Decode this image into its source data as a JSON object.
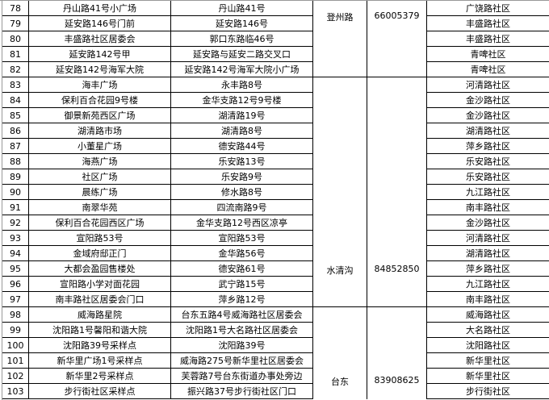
{
  "rows": [
    {
      "no": "78",
      "site": "丹山路41号小广场",
      "address": "丹山路41号",
      "community": "广饶路社区"
    },
    {
      "no": "79",
      "site": "延安路146号门前",
      "address": "延安路146号",
      "community": "丰盛路社区"
    },
    {
      "no": "80",
      "site": "丰盛路社区居委会",
      "address": "郭口东路临46号",
      "community": "丰盛路社区"
    },
    {
      "no": "81",
      "site": "延安路142号甲",
      "address": "延安路与延安二路交叉口",
      "community": "青啤社区"
    },
    {
      "no": "82",
      "site": "延安路142号海军大院",
      "address": "延安路142号海军大院小广场",
      "community": "青啤社区"
    },
    {
      "no": "83",
      "site": "海丰广场",
      "address": "永丰路8号",
      "community": "河清路社区"
    },
    {
      "no": "84",
      "site": "保利百合花园9号楼",
      "address": "金华支路12号9号楼",
      "community": "金沙路社区"
    },
    {
      "no": "85",
      "site": "御景新苑西区广场",
      "address": "湖清路19号",
      "community": "金沙路社区"
    },
    {
      "no": "86",
      "site": "湖清路市场",
      "address": "湖清路8号",
      "community": "湖清路社区"
    },
    {
      "no": "87",
      "site": "小董星广场",
      "address": "德安路44号",
      "community": "萍乡路社区"
    },
    {
      "no": "88",
      "site": "海燕广场",
      "address": "乐安路13号",
      "community": "乐安路社区"
    },
    {
      "no": "89",
      "site": "社区广场",
      "address": "乐安路9号",
      "community": "乐安路社区"
    },
    {
      "no": "90",
      "site": "晨练广场",
      "address": "修水路8号",
      "community": "九江路社区"
    },
    {
      "no": "91",
      "site": "南翠华苑",
      "address": "四流南路9号",
      "community": "南丰路社区"
    },
    {
      "no": "92",
      "site": "保利百合花园西区广场",
      "address": "金华支路12号西区凉亭",
      "community": "金沙路社区"
    },
    {
      "no": "93",
      "site": "宣阳路53号",
      "address": "宣阳路53号",
      "community": "河清路社区"
    },
    {
      "no": "94",
      "site": "金域府邸正门",
      "address": "金华路56号",
      "community": "湖清路社区"
    },
    {
      "no": "95",
      "site": "大都会盈园售楼处",
      "address": "德安路61号",
      "community": "萍乡路社区"
    },
    {
      "no": "96",
      "site": "宣阳路小学对面花园",
      "address": "武宁路15号",
      "community": "九江路社区"
    },
    {
      "no": "97",
      "site": "南丰路社区居委会门口",
      "address": "萍乡路12号",
      "community": "南丰路社区"
    },
    {
      "no": "98",
      "site": "威海路星院",
      "address": "台东五路4号威海路社区居委会",
      "community": "威海路社区"
    },
    {
      "no": "99",
      "site": "沈阳路1号馨阳和谐大院",
      "address": "沈阳路1号大名路社区居委会",
      "community": "大名路社区"
    },
    {
      "no": "100",
      "site": "沈阳路39号采样点",
      "address": "沈阳路39号",
      "community": "沈阳路社区"
    },
    {
      "no": "101",
      "site": "新华里广场1号采样点",
      "address": "威海路275号新华里社区居委会",
      "community": "新华里社区"
    },
    {
      "no": "102",
      "site": "新华里2号采样点",
      "address": "芙蓉路7号台东街道办事处旁边",
      "community": "新华里社区"
    },
    {
      "no": "103",
      "site": "步行街社区采样点",
      "address": "振兴路37号步行街社区门口",
      "community": "步行街社区"
    }
  ],
  "groups": [
    {
      "street": "登州路",
      "phone": "66005379"
    },
    {
      "street": "水清沟",
      "phone": "84852850"
    },
    {
      "street": "台东",
      "phone": "83908625"
    }
  ]
}
